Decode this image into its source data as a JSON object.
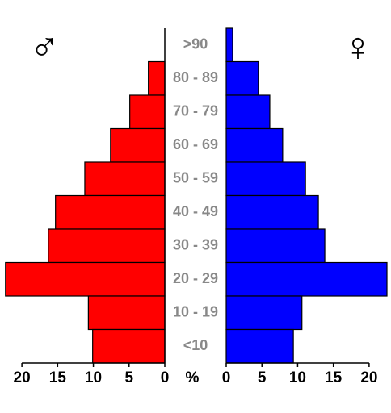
{
  "chart_data": {
    "type": "pyramid",
    "categories": [
      ">90",
      "80 - 89",
      "70 - 79",
      "60 - 69",
      "50 - 59",
      "40 - 49",
      "30 - 39",
      "20 - 29",
      "10 - 19",
      "<10"
    ],
    "series": [
      {
        "name": "♂",
        "color": "#ff0000",
        "side": "left",
        "values": [
          0,
          2.3,
          4.9,
          7.6,
          11.2,
          15.3,
          16.3,
          22.3,
          10.7,
          10.1
        ]
      },
      {
        "name": "♀",
        "color": "#0000ff",
        "side": "right",
        "values": [
          0.9,
          4.5,
          6.1,
          7.9,
          11.1,
          12.9,
          13.8,
          22.5,
          10.6,
          9.4
        ]
      }
    ],
    "xlim": [
      0,
      22.5
    ],
    "xticks": [
      0,
      5,
      10,
      15,
      20
    ],
    "unit_label": "%"
  }
}
